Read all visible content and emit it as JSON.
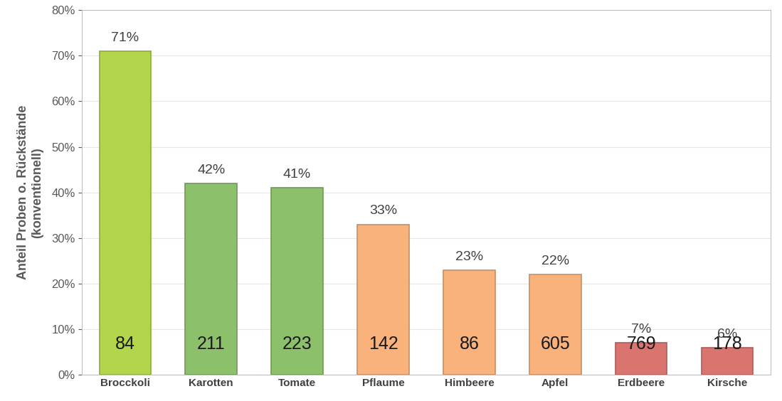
{
  "chart_data": {
    "type": "bar",
    "y_label": "Anteil Proben o. Rückstände\n(konventionell)",
    "categories": [
      "Brocckoli",
      "Karotten",
      "Tomate",
      "Pflaume",
      "Himbeere",
      "Apfel",
      "Erdbeere",
      "Kirsche"
    ],
    "values": [
      71,
      42,
      41,
      33,
      23,
      22,
      7,
      6
    ],
    "value_labels": [
      "71%",
      "42%",
      "41%",
      "33%",
      "23%",
      "22%",
      "7%",
      "6%"
    ],
    "sample_counts": [
      84,
      211,
      223,
      142,
      86,
      605,
      769,
      178
    ],
    "colors": [
      "#b3d54b",
      "#8dc06b",
      "#8dc06b",
      "#f9b27c",
      "#f9b27c",
      "#f9b27c",
      "#d9746f",
      "#d9746f"
    ],
    "ylim": [
      0,
      80
    ],
    "yticks": [
      {
        "value": 0,
        "label": "0%"
      },
      {
        "value": 10,
        "label": "10%"
      },
      {
        "value": 20,
        "label": "20%"
      },
      {
        "value": 30,
        "label": "30%"
      },
      {
        "value": 40,
        "label": "40%"
      },
      {
        "value": 50,
        "label": "50%"
      },
      {
        "value": 60,
        "label": "60%"
      },
      {
        "value": 70,
        "label": "70%"
      },
      {
        "value": 80,
        "label": "80%"
      }
    ],
    "grid": true,
    "data_labels": true
  }
}
